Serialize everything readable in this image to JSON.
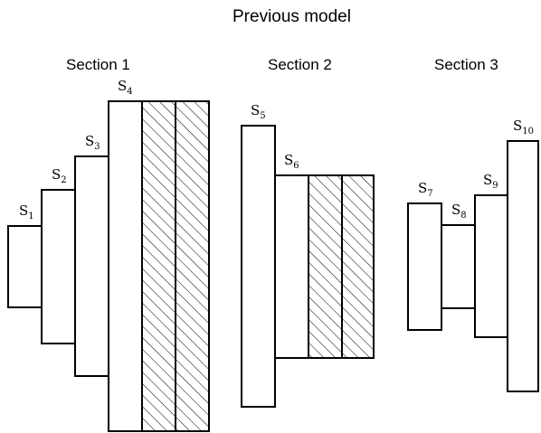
{
  "title": "Previous model",
  "sections": [
    {
      "label": "Section 1"
    },
    {
      "label": "Section 2"
    },
    {
      "label": "Section 3"
    }
  ],
  "stages": [
    {
      "letter": "S",
      "index": "1"
    },
    {
      "letter": "S",
      "index": "2"
    },
    {
      "letter": "S",
      "index": "3"
    },
    {
      "letter": "S",
      "index": "4"
    },
    {
      "letter": "S",
      "index": "5"
    },
    {
      "letter": "S",
      "index": "6"
    },
    {
      "letter": "S",
      "index": "7"
    },
    {
      "letter": "S",
      "index": "8"
    },
    {
      "letter": "S",
      "index": "9"
    },
    {
      "letter": "S",
      "index": "10"
    }
  ]
}
